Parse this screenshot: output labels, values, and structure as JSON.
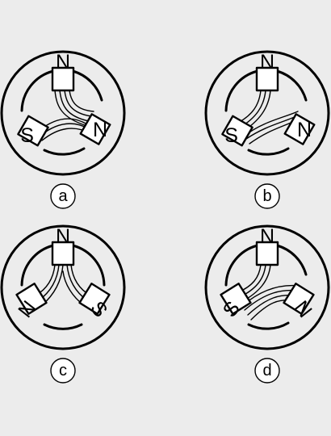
{
  "colors": {
    "background": "#ececec",
    "line": "#000000",
    "fill": "#ffffff"
  },
  "diagrams": [
    {
      "id": "a",
      "caption": "a",
      "poles": {
        "top": "N",
        "left": "S",
        "right": "N"
      },
      "field": "to-right"
    },
    {
      "id": "b",
      "caption": "b",
      "poles": {
        "top": "N",
        "left": "S",
        "right": "N"
      },
      "field": "to-left"
    },
    {
      "id": "c",
      "caption": "c",
      "poles": {
        "top": "N",
        "left": "N",
        "right": "S"
      },
      "field": "to-both"
    },
    {
      "id": "d",
      "caption": "d",
      "poles": {
        "top": "N",
        "left": "S",
        "right": "N"
      },
      "field": "to-left-crossing"
    }
  ]
}
